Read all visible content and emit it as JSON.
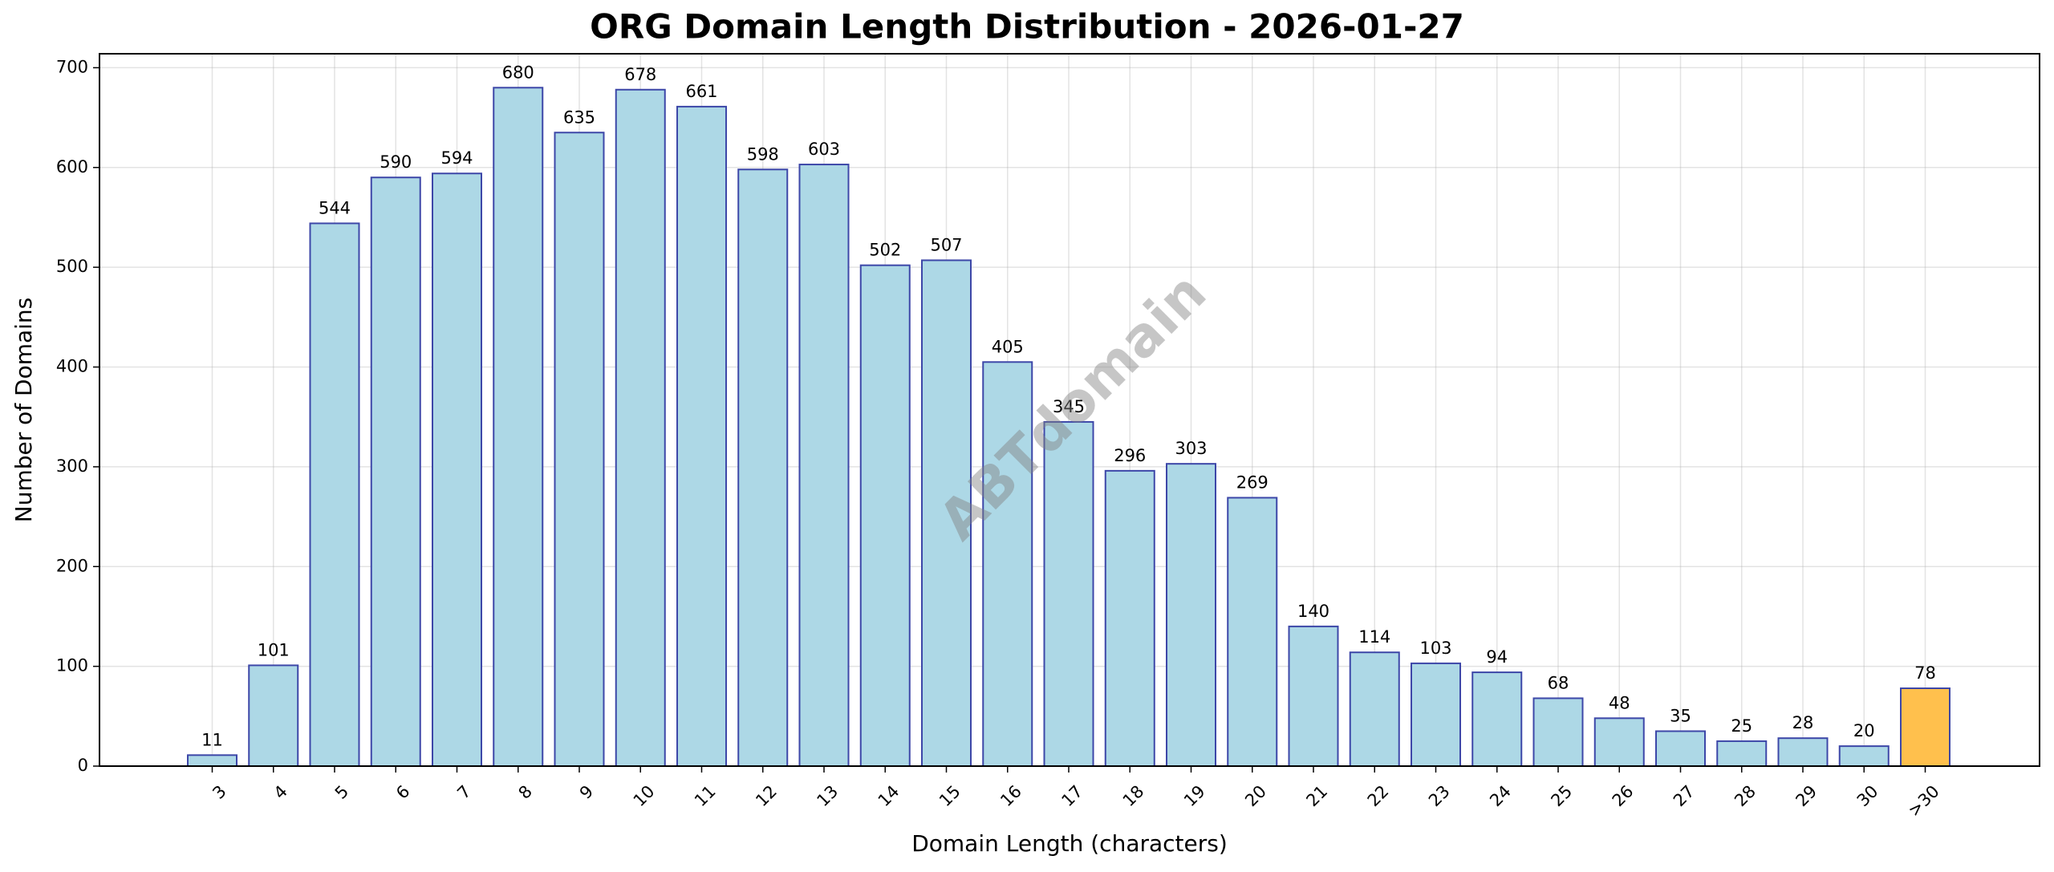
{
  "chart_data": {
    "type": "bar",
    "title": "ORG Domain Length Distribution - 2026-01-27",
    "x_label": "Domain Length (characters)",
    "y_label": "Number of Domains",
    "watermark": "ABTdomain",
    "categories": [
      "3",
      "4",
      "5",
      "6",
      "7",
      "8",
      "9",
      "10",
      "11",
      "12",
      "13",
      "14",
      "15",
      "16",
      "17",
      "18",
      "19",
      "20",
      "21",
      "22",
      "23",
      "24",
      "25",
      "26",
      "27",
      "28",
      "29",
      "30",
      ">30"
    ],
    "values": [
      11,
      101,
      544,
      590,
      594,
      680,
      635,
      678,
      661,
      598,
      603,
      502,
      507,
      405,
      345,
      296,
      303,
      269,
      140,
      114,
      103,
      94,
      68,
      48,
      35,
      25,
      28,
      20,
      78
    ],
    "colors": [
      "#add8e6",
      "#add8e6",
      "#add8e6",
      "#add8e6",
      "#add8e6",
      "#add8e6",
      "#add8e6",
      "#add8e6",
      "#add8e6",
      "#add8e6",
      "#add8e6",
      "#add8e6",
      "#add8e6",
      "#add8e6",
      "#add8e6",
      "#add8e6",
      "#add8e6",
      "#add8e6",
      "#add8e6",
      "#add8e6",
      "#add8e6",
      "#add8e6",
      "#add8e6",
      "#add8e6",
      "#add8e6",
      "#add8e6",
      "#add8e6",
      "#add8e6",
      "#ffc04d"
    ],
    "edge_color": "#3d47a8",
    "ylim": [
      0,
      714
    ],
    "yticks": [
      0,
      100,
      200,
      300,
      400,
      500,
      600,
      700
    ],
    "grid": true
  }
}
